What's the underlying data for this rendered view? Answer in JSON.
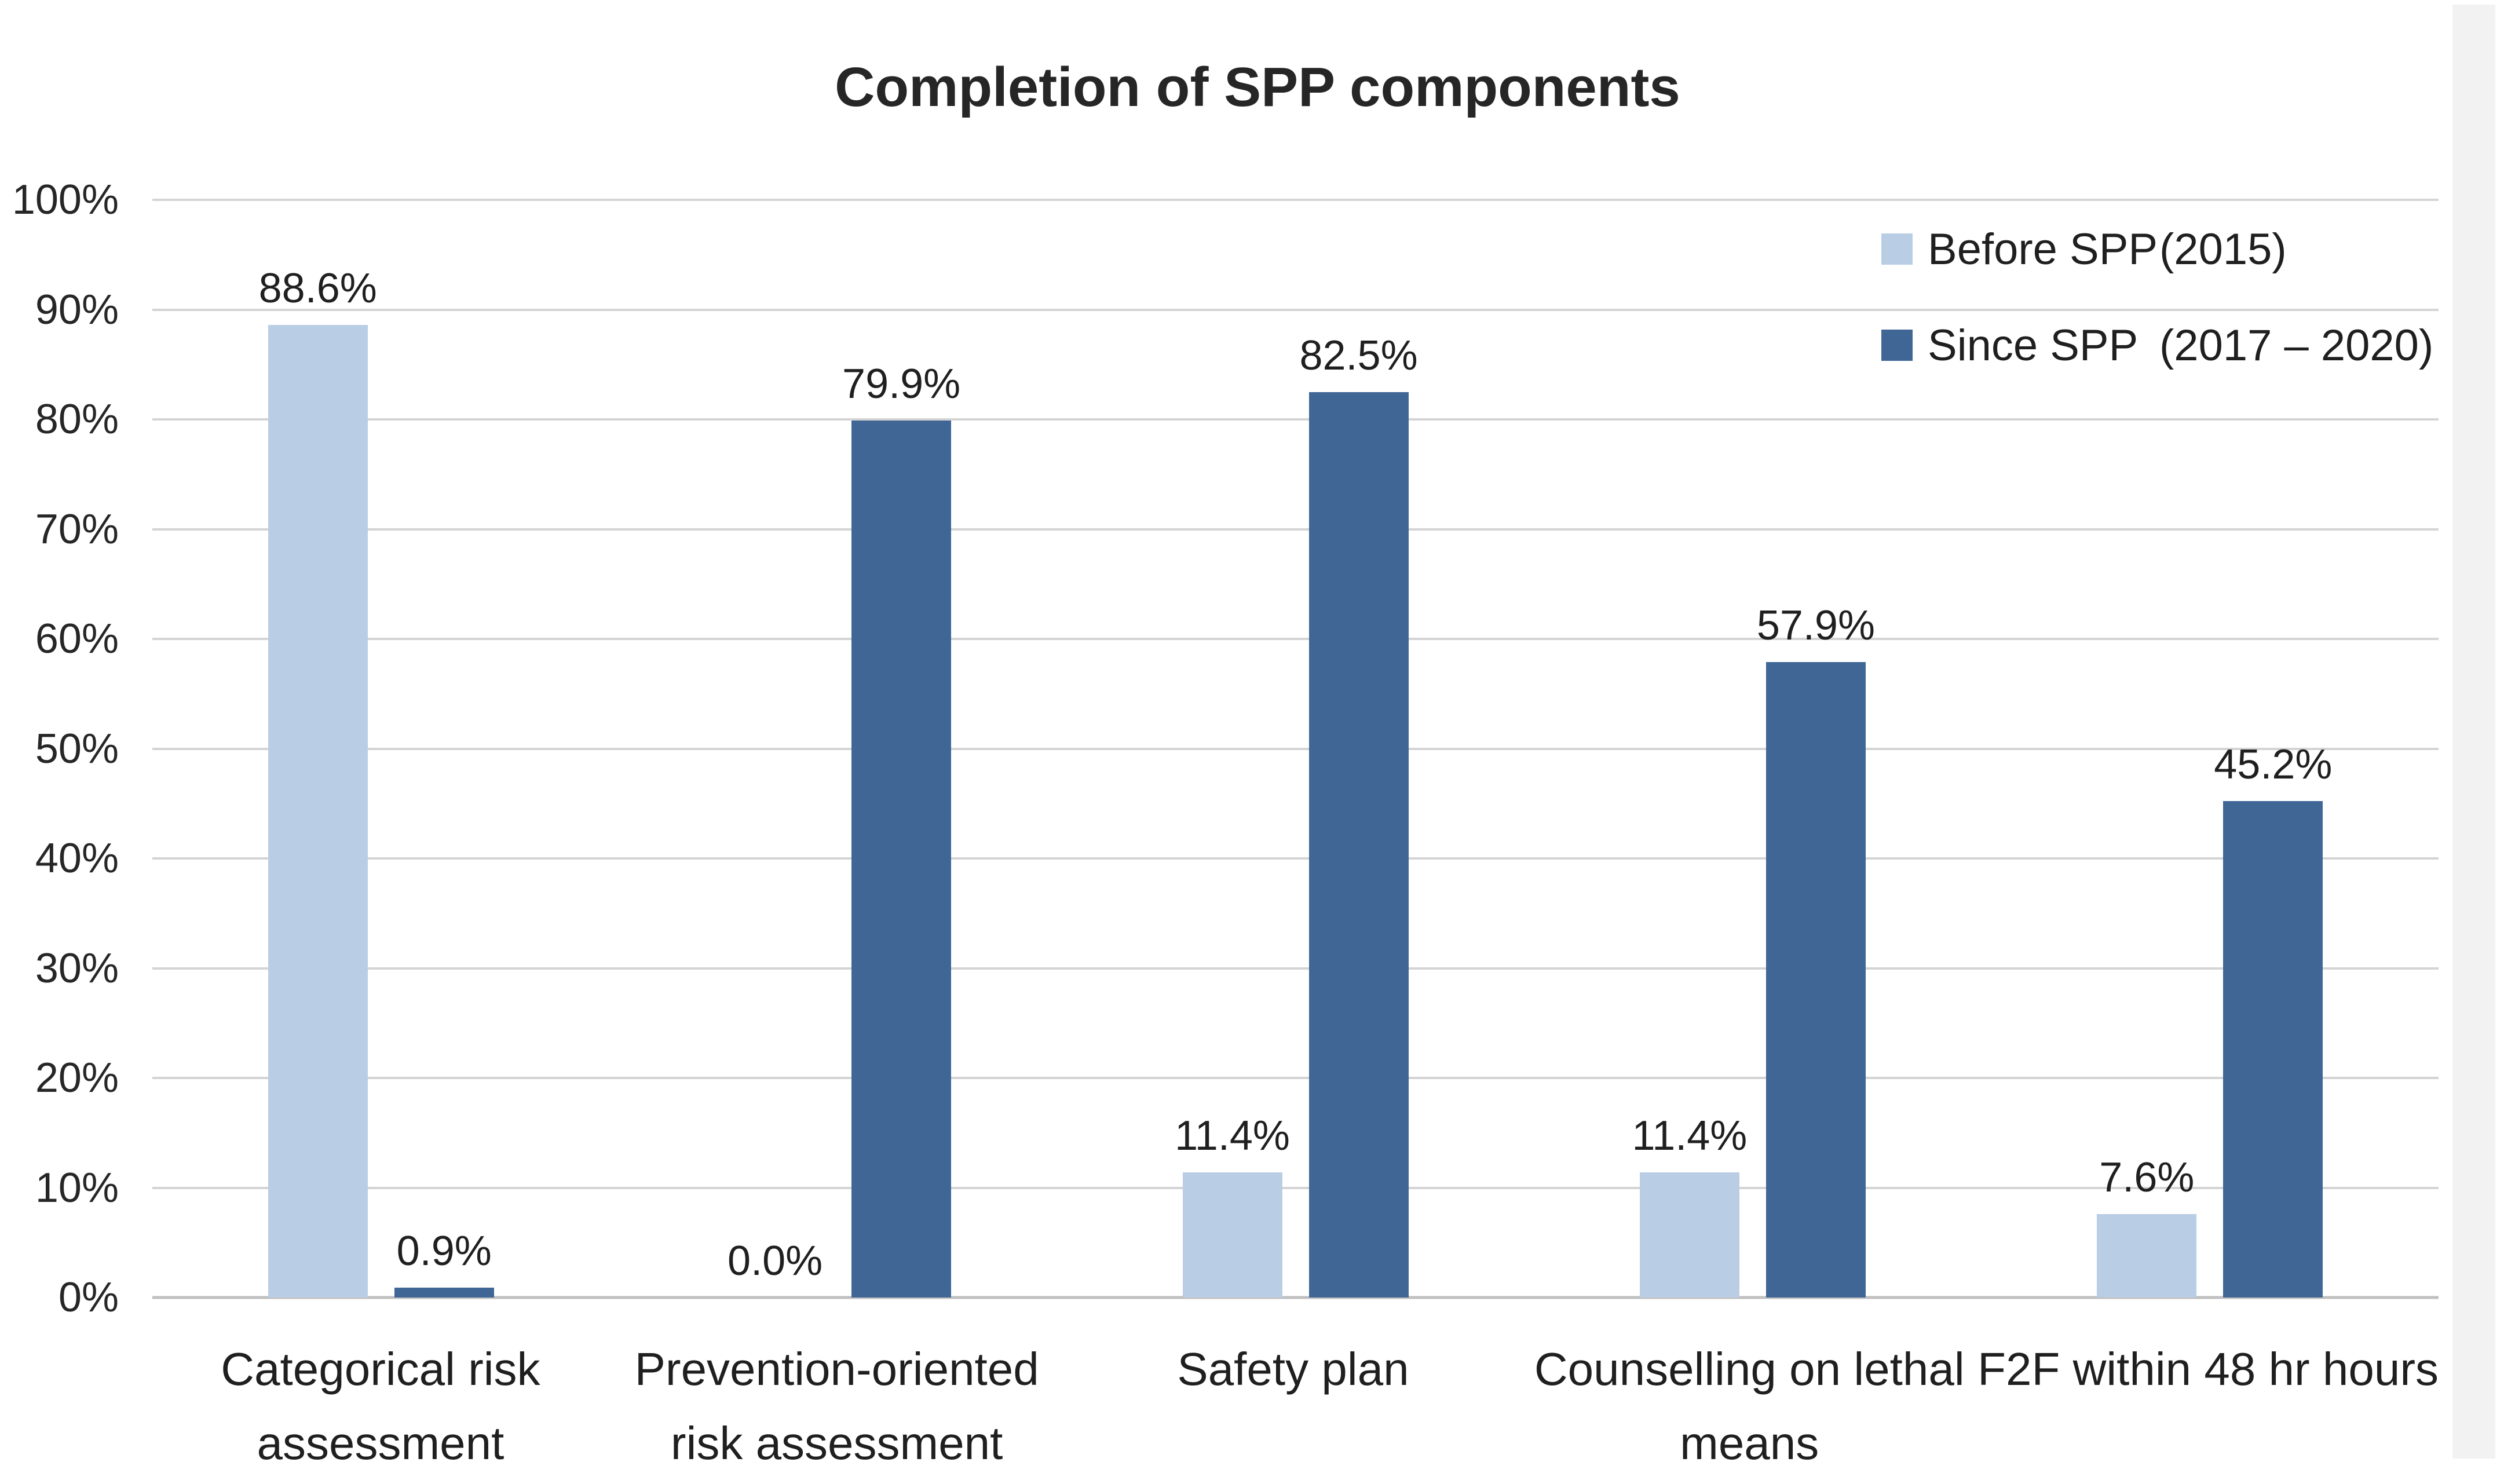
{
  "chart_data": {
    "type": "bar",
    "title": "Completion of SPP components",
    "categories": [
      "Categorical risk assessment",
      "Prevention-oriented risk assessment",
      "Safety plan",
      "Counselling on lethal means",
      "F2F within 48 hr hours"
    ],
    "series": [
      {
        "name": "Before SPP",
        "period": "(2015)",
        "color": "#b9cde5",
        "values": [
          88.6,
          0.0,
          11.4,
          11.4,
          7.6
        ],
        "value_labels": [
          "88.6%",
          "0.0%",
          "11.4%",
          "11.4%",
          "7.6%"
        ]
      },
      {
        "name": "Since SPP",
        "period": "(2017 – 2020)",
        "color": "#3f6695",
        "values": [
          0.9,
          79.9,
          82.5,
          57.9,
          45.2
        ],
        "value_labels": [
          "0.9%",
          "79.9%",
          "82.5%",
          "57.9%",
          "45.2%"
        ]
      }
    ],
    "y_axis": {
      "ticks": [
        "100%",
        "90%",
        "80%",
        "70%",
        "60%",
        "50%",
        "40%",
        "30%",
        "20%",
        "10%",
        "0%"
      ],
      "min": 0,
      "max": 100,
      "unit": "%"
    },
    "grid": true,
    "legend_position": "top-right"
  },
  "colors": {
    "before_spp": "#b9cde5",
    "since_spp": "#3f6695",
    "gridline": "#d4d4d4",
    "baseline": "#bfbfbf",
    "text": "#1f1f1f",
    "background": "#ffffff",
    "page_edge": "#f2f2f2"
  }
}
